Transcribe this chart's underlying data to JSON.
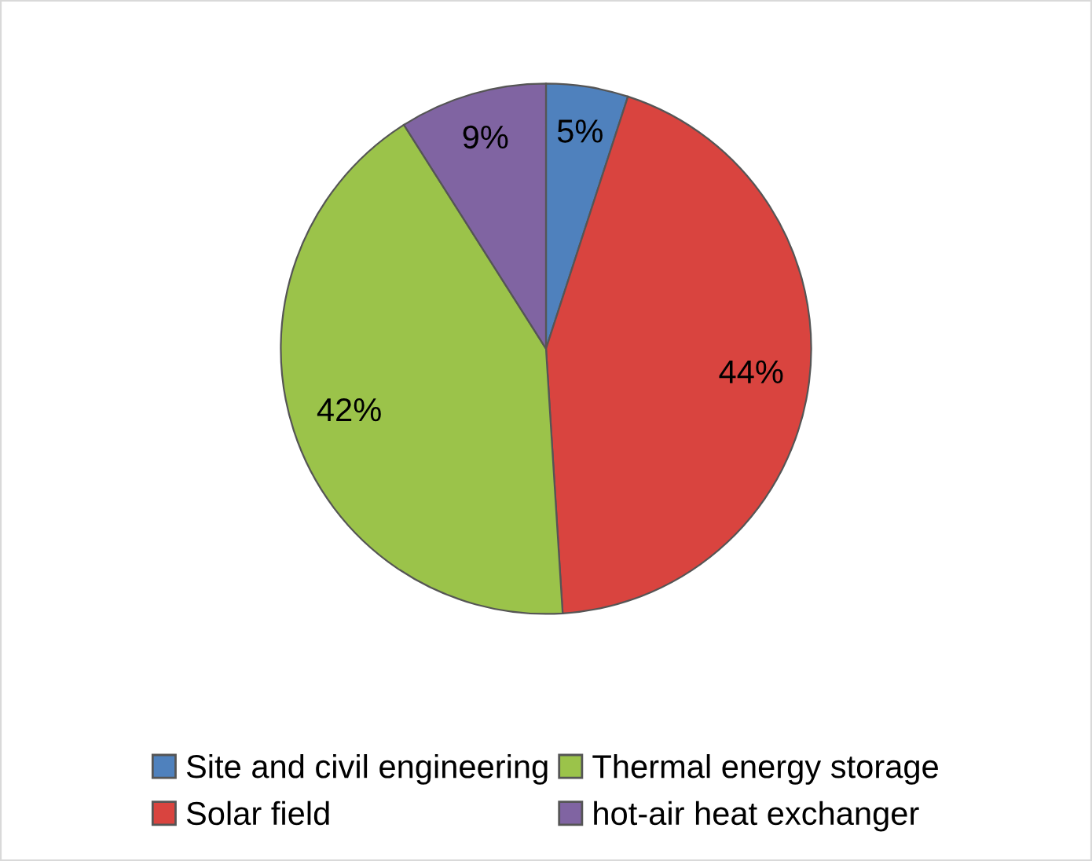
{
  "chart_data": {
    "type": "pie",
    "categories": [
      "Site and civil engineering",
      "Solar field",
      "Thermal energy storage",
      "hot-air heat exchanger"
    ],
    "values": [
      5,
      44,
      42,
      9
    ],
    "colors": [
      "#4f81bd",
      "#d9443f",
      "#9bc34a",
      "#8064a2"
    ],
    "value_labels": [
      "5%",
      "44%",
      "42%",
      "9%"
    ],
    "legend": "bottom"
  }
}
